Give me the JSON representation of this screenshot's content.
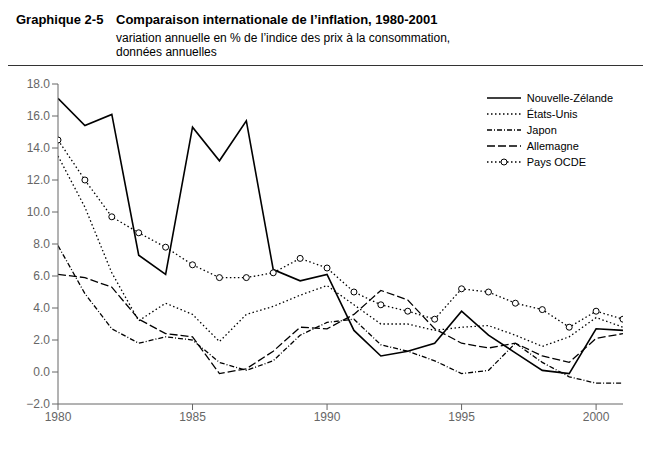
{
  "chart_data": {
    "type": "line",
    "title": [
      "Graphique 2-5",
      "Comparaison internationale de l’inflation, 1980-2001"
    ],
    "subtitle": "variation annuelle en % de l’indice des prix à la consommation,\ndonnées annuelles",
    "x": [
      1980,
      1981,
      1982,
      1983,
      1984,
      1985,
      1986,
      1987,
      1988,
      1989,
      1990,
      1991,
      1992,
      1993,
      1994,
      1995,
      1996,
      1997,
      1998,
      1999,
      2000,
      2001
    ],
    "series": [
      {
        "name": "Nouvelle-Zélande",
        "color": "#000000",
        "line_style": "solid",
        "values": [
          17.1,
          15.4,
          16.1,
          7.3,
          6.1,
          15.3,
          13.2,
          15.7,
          6.4,
          5.7,
          6.1,
          2.6,
          1.0,
          1.3,
          1.8,
          3.8,
          2.3,
          1.2,
          0.1,
          -0.1,
          2.7,
          2.6
        ]
      },
      {
        "name": "États-Unis",
        "color": "#000000",
        "line_style": "dotted",
        "values": [
          13.5,
          10.3,
          6.2,
          3.2,
          4.3,
          3.6,
          1.9,
          3.6,
          4.1,
          4.8,
          5.4,
          4.2,
          3.0,
          3.0,
          2.6,
          2.8,
          2.9,
          2.3,
          1.6,
          2.2,
          3.4,
          2.8
        ]
      },
      {
        "name": "Japon",
        "color": "#000000",
        "line_style": "dashdot",
        "values": [
          7.9,
          4.9,
          2.7,
          1.8,
          2.2,
          2.0,
          0.6,
          0.1,
          0.7,
          2.3,
          3.1,
          3.3,
          1.7,
          1.3,
          0.7,
          -0.1,
          0.1,
          1.8,
          0.6,
          -0.3,
          -0.7,
          -0.7
        ]
      },
      {
        "name": "Allemagne",
        "color": "#000000",
        "line_style": "dashed",
        "values": [
          6.1,
          5.9,
          5.3,
          3.3,
          2.4,
          2.2,
          -0.1,
          0.2,
          1.3,
          2.8,
          2.7,
          3.6,
          5.1,
          4.5,
          2.7,
          1.8,
          1.5,
          1.8,
          1.0,
          0.6,
          2.1,
          2.4
        ]
      },
      {
        "name": "Pays OCDE",
        "color": "#000000",
        "line_style": "dotted",
        "marker": "circle",
        "values": [
          14.5,
          12.0,
          9.7,
          8.7,
          7.8,
          6.7,
          5.9,
          5.9,
          6.2,
          7.1,
          6.5,
          5.0,
          4.2,
          3.8,
          3.3,
          5.2,
          5.0,
          4.3,
          3.9,
          2.8,
          3.8,
          3.3
        ]
      }
    ],
    "xlim": [
      1980,
      2001
    ],
    "xticks": [
      1980,
      1985,
      1990,
      1995,
      2000
    ],
    "ylim": [
      -2.0,
      18.0
    ],
    "yticks": [
      {
        "value": -2.0,
        "label": "−2.0"
      },
      {
        "value": 0.0,
        "label": "0.0"
      },
      {
        "value": 2.0,
        "label": "2.0"
      },
      {
        "value": 4.0,
        "label": "4.0"
      },
      {
        "value": 6.0,
        "label": "6.0"
      },
      {
        "value": 8.0,
        "label": "8.0"
      },
      {
        "value": 10.0,
        "label": "10.0"
      },
      {
        "value": 12.0,
        "label": "12.0"
      },
      {
        "value": 14.0,
        "label": "14.0"
      },
      {
        "value": 16.0,
        "label": "16.0"
      },
      {
        "value": 18.0,
        "label": "18.0"
      }
    ],
    "legend": "upper right",
    "grid": false
  }
}
